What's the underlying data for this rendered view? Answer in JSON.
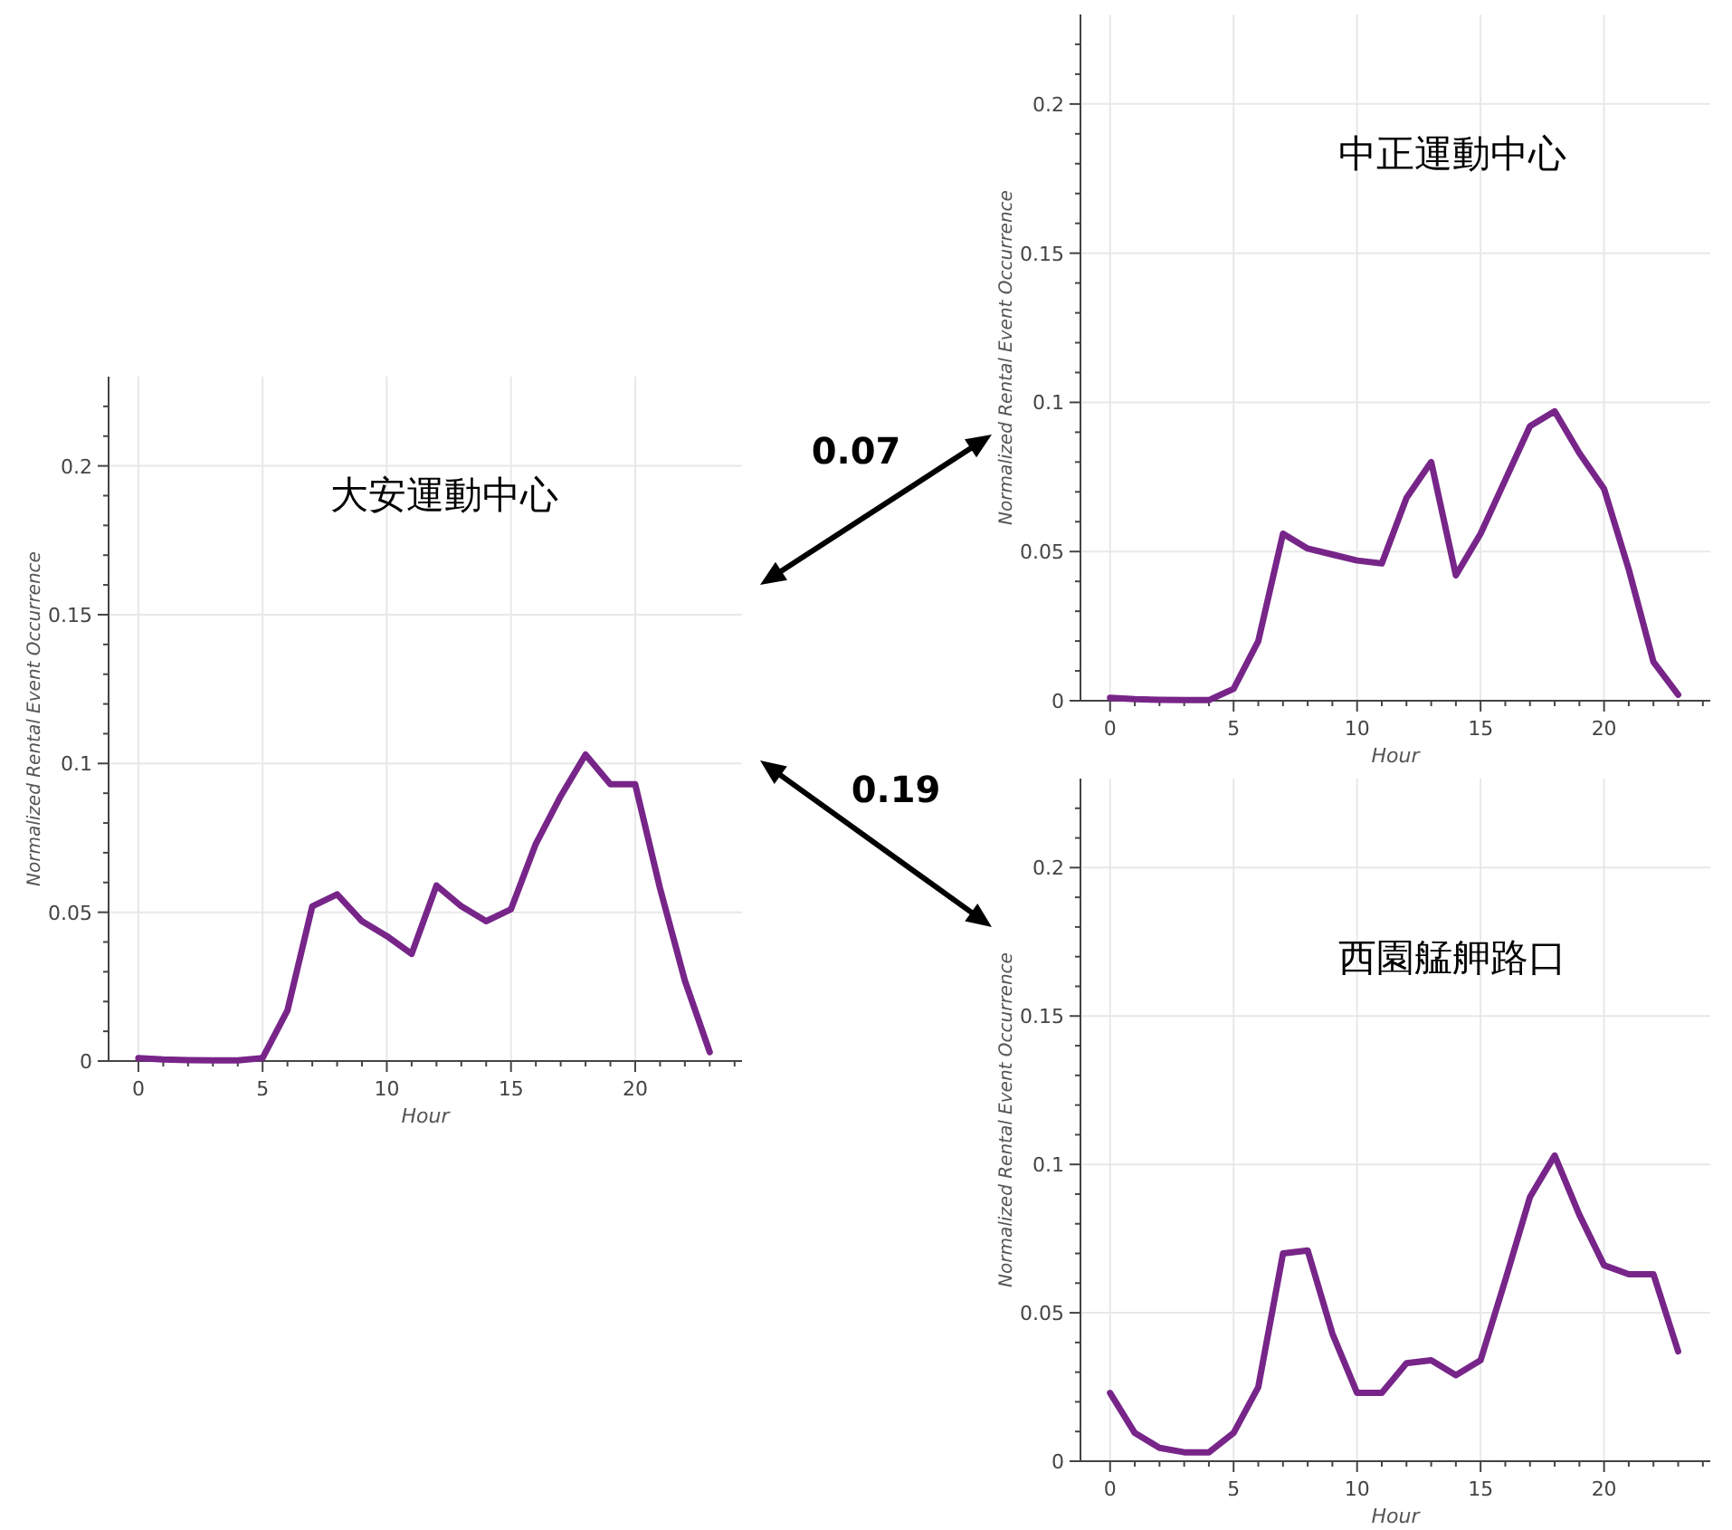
{
  "chart_data": [
    {
      "type": "line",
      "title": "大安運動中心",
      "xlabel": "Hour",
      "ylabel": "Normalized Rental Event Occurrence",
      "grid": true,
      "xlim": [
        -1.2,
        24.3
      ],
      "ylim": [
        0,
        0.23
      ],
      "xticks": [
        0,
        {
          "value": 1,
          "label": null
        },
        {
          "value": 2,
          "label": null
        },
        {
          "value": 3,
          "label": null
        },
        {
          "value": 4,
          "label": null
        },
        5,
        {
          "value": 6,
          "label": null
        },
        {
          "value": 7,
          "label": null
        },
        {
          "value": 8,
          "label": null
        },
        {
          "value": 9,
          "label": null
        },
        10,
        {
          "value": 11,
          "label": null
        },
        {
          "value": 12,
          "label": null
        },
        {
          "value": 13,
          "label": null
        },
        {
          "value": 14,
          "label": null
        },
        15,
        {
          "value": 16,
          "label": null
        },
        {
          "value": 17,
          "label": null
        },
        {
          "value": 18,
          "label": null
        },
        {
          "value": 19,
          "label": null
        },
        20,
        {
          "value": 21,
          "label": null
        },
        {
          "value": 22,
          "label": null
        },
        {
          "value": 23,
          "label": null
        },
        {
          "value": 24,
          "label": null
        }
      ],
      "yticks": [
        0,
        {
          "value": 0.01,
          "label": null
        },
        {
          "value": 0.02,
          "label": null
        },
        {
          "value": 0.03,
          "label": null
        },
        {
          "value": 0.04,
          "label": null
        },
        0.05,
        {
          "value": 0.06,
          "label": null
        },
        {
          "value": 0.07,
          "label": null
        },
        {
          "value": 0.08,
          "label": null
        },
        {
          "value": 0.09,
          "label": null
        },
        0.1,
        {
          "value": 0.11,
          "label": null
        },
        {
          "value": 0.12,
          "label": null
        },
        {
          "value": 0.13,
          "label": null
        },
        {
          "value": 0.14,
          "label": null
        },
        0.15,
        {
          "value": 0.16,
          "label": null
        },
        {
          "value": 0.17,
          "label": null
        },
        {
          "value": 0.18,
          "label": null
        },
        {
          "value": 0.19,
          "label": null
        },
        0.2,
        {
          "value": 0.21,
          "label": null
        },
        {
          "value": 0.22,
          "label": null
        }
      ],
      "x": [
        0,
        1,
        2,
        3,
        4,
        5,
        6,
        7,
        8,
        9,
        10,
        11,
        12,
        13,
        14,
        15,
        16,
        17,
        18,
        19,
        20,
        21,
        22,
        23
      ],
      "series": [
        {
          "color": "#772589",
          "values": [
            0.001,
            0.0005,
            0.0003,
            0.0002,
            0.0002,
            0.001,
            0.017,
            0.052,
            0.056,
            0.047,
            0.042,
            0.036,
            0.059,
            0.052,
            0.047,
            0.051,
            0.073,
            0.089,
            0.103,
            0.093,
            0.093,
            0.058,
            0.027,
            0.003
          ]
        }
      ]
    },
    {
      "type": "line",
      "title": "中正運動中心",
      "xlabel": "Hour",
      "ylabel": "Normalized Rental Event Occurrence",
      "grid": true,
      "xlim": [
        -1.2,
        24.3
      ],
      "ylim": [
        0,
        0.23
      ],
      "annotations": [
        "0.07"
      ],
      "xticks": [
        0,
        {
          "value": 1,
          "label": null
        },
        {
          "value": 2,
          "label": null
        },
        {
          "value": 3,
          "label": null
        },
        {
          "value": 4,
          "label": null
        },
        5,
        {
          "value": 6,
          "label": null
        },
        {
          "value": 7,
          "label": null
        },
        {
          "value": 8,
          "label": null
        },
        {
          "value": 9,
          "label": null
        },
        10,
        {
          "value": 11,
          "label": null
        },
        {
          "value": 12,
          "label": null
        },
        {
          "value": 13,
          "label": null
        },
        {
          "value": 14,
          "label": null
        },
        15,
        {
          "value": 16,
          "label": null
        },
        {
          "value": 17,
          "label": null
        },
        {
          "value": 18,
          "label": null
        },
        {
          "value": 19,
          "label": null
        },
        20,
        {
          "value": 21,
          "label": null
        },
        {
          "value": 22,
          "label": null
        },
        {
          "value": 23,
          "label": null
        },
        {
          "value": 24,
          "label": null
        }
      ],
      "yticks": [
        0,
        {
          "value": 0.01,
          "label": null
        },
        {
          "value": 0.02,
          "label": null
        },
        {
          "value": 0.03,
          "label": null
        },
        {
          "value": 0.04,
          "label": null
        },
        0.05,
        {
          "value": 0.06,
          "label": null
        },
        {
          "value": 0.07,
          "label": null
        },
        {
          "value": 0.08,
          "label": null
        },
        {
          "value": 0.09,
          "label": null
        },
        0.1,
        {
          "value": 0.11,
          "label": null
        },
        {
          "value": 0.12,
          "label": null
        },
        {
          "value": 0.13,
          "label": null
        },
        {
          "value": 0.14,
          "label": null
        },
        0.15,
        {
          "value": 0.16,
          "label": null
        },
        {
          "value": 0.17,
          "label": null
        },
        {
          "value": 0.18,
          "label": null
        },
        {
          "value": 0.19,
          "label": null
        },
        0.2,
        {
          "value": 0.21,
          "label": null
        },
        {
          "value": 0.22,
          "label": null
        }
      ],
      "x": [
        0,
        1,
        2,
        3,
        4,
        5,
        6,
        7,
        8,
        9,
        10,
        11,
        12,
        13,
        14,
        15,
        16,
        17,
        18,
        19,
        20,
        21,
        22,
        23
      ],
      "series": [
        {
          "color": "#772589",
          "values": [
            0.001,
            0.0005,
            0.0003,
            0.0002,
            0.0002,
            0.004,
            0.02,
            0.056,
            0.051,
            0.049,
            0.047,
            0.046,
            0.068,
            0.08,
            0.042,
            0.056,
            0.074,
            0.092,
            0.097,
            0.083,
            0.071,
            0.044,
            0.013,
            0.002
          ]
        }
      ]
    },
    {
      "type": "line",
      "title": "西園艋舺路口",
      "xlabel": "Hour",
      "ylabel": "Normalized Rental Event Occurrence",
      "grid": true,
      "xlim": [
        -1.2,
        24.3
      ],
      "ylim": [
        0,
        0.23
      ],
      "annotations": [
        "0.19"
      ],
      "xticks": [
        0,
        {
          "value": 1,
          "label": null
        },
        {
          "value": 2,
          "label": null
        },
        {
          "value": 3,
          "label": null
        },
        {
          "value": 4,
          "label": null
        },
        5,
        {
          "value": 6,
          "label": null
        },
        {
          "value": 7,
          "label": null
        },
        {
          "value": 8,
          "label": null
        },
        {
          "value": 9,
          "label": null
        },
        10,
        {
          "value": 11,
          "label": null
        },
        {
          "value": 12,
          "label": null
        },
        {
          "value": 13,
          "label": null
        },
        {
          "value": 14,
          "label": null
        },
        15,
        {
          "value": 16,
          "label": null
        },
        {
          "value": 17,
          "label": null
        },
        {
          "value": 18,
          "label": null
        },
        {
          "value": 19,
          "label": null
        },
        20,
        {
          "value": 21,
          "label": null
        },
        {
          "value": 22,
          "label": null
        },
        {
          "value": 23,
          "label": null
        },
        {
          "value": 24,
          "label": null
        }
      ],
      "yticks": [
        0,
        {
          "value": 0.01,
          "label": null
        },
        {
          "value": 0.02,
          "label": null
        },
        {
          "value": 0.03,
          "label": null
        },
        {
          "value": 0.04,
          "label": null
        },
        0.05,
        {
          "value": 0.06,
          "label": null
        },
        {
          "value": 0.07,
          "label": null
        },
        {
          "value": 0.08,
          "label": null
        },
        {
          "value": 0.09,
          "label": null
        },
        0.1,
        {
          "value": 0.11,
          "label": null
        },
        {
          "value": 0.12,
          "label": null
        },
        {
          "value": 0.13,
          "label": null
        },
        {
          "value": 0.14,
          "label": null
        },
        0.15,
        {
          "value": 0.16,
          "label": null
        },
        {
          "value": 0.17,
          "label": null
        },
        {
          "value": 0.18,
          "label": null
        },
        {
          "value": 0.19,
          "label": null
        },
        0.2,
        {
          "value": 0.21,
          "label": null
        },
        {
          "value": 0.22,
          "label": null
        }
      ],
      "x": [
        0,
        1,
        2,
        3,
        4,
        5,
        6,
        7,
        8,
        9,
        10,
        11,
        12,
        13,
        14,
        15,
        16,
        17,
        18,
        19,
        20,
        21,
        22,
        23
      ],
      "series": [
        {
          "color": "#772589",
          "values": [
            0.023,
            0.0095,
            0.0045,
            0.003,
            0.003,
            0.0095,
            0.025,
            0.07,
            0.071,
            0.043,
            0.023,
            0.023,
            0.033,
            0.034,
            0.029,
            0.034,
            0.061,
            0.089,
            0.103,
            0.083,
            0.066,
            0.063,
            0.063,
            0.037
          ]
        }
      ]
    }
  ]
}
